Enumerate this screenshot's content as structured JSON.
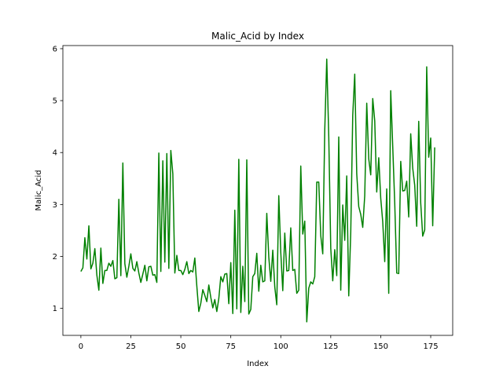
{
  "chart_data": {
    "type": "line",
    "title": "Malic_Acid by Index",
    "xlabel": "Index",
    "ylabel": "Malic_Acid",
    "xlim": [
      -9,
      186
    ],
    "ylim": [
      0.48,
      6.06
    ],
    "xticks": [
      0,
      25,
      50,
      75,
      100,
      125,
      150,
      175
    ],
    "yticks": [
      1,
      2,
      3,
      4,
      5,
      6
    ],
    "grid": false,
    "legend": "none",
    "line_color": "#008000",
    "series": [
      {
        "values": [
          1.71,
          1.78,
          2.36,
          1.95,
          2.59,
          1.76,
          1.87,
          2.15,
          1.64,
          1.35,
          2.16,
          1.48,
          1.73,
          1.73,
          1.87,
          1.81,
          1.92,
          1.57,
          1.59,
          3.1,
          1.63,
          3.8,
          1.86,
          1.6,
          1.81,
          2.05,
          1.77,
          1.72,
          1.9,
          1.68,
          1.5,
          1.66,
          1.83,
          1.53,
          1.8,
          1.81,
          1.64,
          1.65,
          1.5,
          3.99,
          1.71,
          3.84,
          1.89,
          3.98,
          1.77,
          4.04,
          3.59,
          1.68,
          2.02,
          1.73,
          1.73,
          1.65,
          1.75,
          1.9,
          1.67,
          1.73,
          1.7,
          1.97,
          1.43,
          0.94,
          1.1,
          1.36,
          1.25,
          1.13,
          1.45,
          1.21,
          1.01,
          1.17,
          0.94,
          1.19,
          1.61,
          1.51,
          1.66,
          1.67,
          1.09,
          1.88,
          0.9,
          2.89,
          0.99,
          3.87,
          0.92,
          1.81,
          1.13,
          3.86,
          0.89,
          0.98,
          1.61,
          1.67,
          2.06,
          1.33,
          1.83,
          1.51,
          1.53,
          2.83,
          1.99,
          1.52,
          2.12,
          1.41,
          1.07,
          3.17,
          2.08,
          1.34,
          2.45,
          1.72,
          1.73,
          2.55,
          1.73,
          1.75,
          1.29,
          1.35,
          3.74,
          2.43,
          2.68,
          0.74,
          1.39,
          1.51,
          1.47,
          1.61,
          3.43,
          3.43,
          2.4,
          2.05,
          4.43,
          5.8,
          4.31,
          2.16,
          1.53,
          2.13,
          1.63,
          4.3,
          1.35,
          2.99,
          2.31,
          3.55,
          1.24,
          2.46,
          4.72,
          5.51,
          3.59,
          2.96,
          2.81,
          2.56,
          3.17,
          4.95,
          3.88,
          3.57,
          5.04,
          4.61,
          3.24,
          3.9,
          3.12,
          2.67,
          1.9,
          3.3,
          1.29,
          5.19,
          4.12,
          3.03,
          1.68,
          1.67,
          3.83,
          3.26,
          3.27,
          3.45,
          2.76,
          4.36,
          3.7,
          3.37,
          2.58,
          4.6,
          3.03,
          2.39,
          2.51,
          5.65,
          3.91,
          4.28,
          2.59,
          4.1
        ]
      }
    ]
  }
}
